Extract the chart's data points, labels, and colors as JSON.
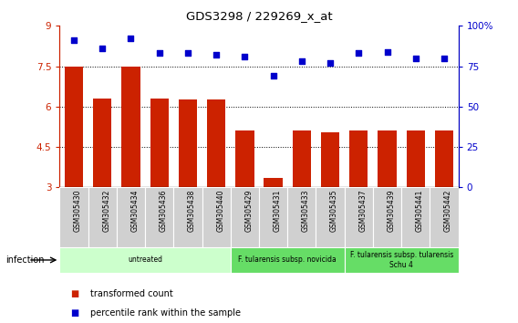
{
  "title": "GDS3298 / 229269_x_at",
  "samples": [
    "GSM305430",
    "GSM305432",
    "GSM305434",
    "GSM305436",
    "GSM305438",
    "GSM305440",
    "GSM305429",
    "GSM305431",
    "GSM305433",
    "GSM305435",
    "GSM305437",
    "GSM305439",
    "GSM305441",
    "GSM305442"
  ],
  "bar_values": [
    7.5,
    6.3,
    7.47,
    6.3,
    6.25,
    6.25,
    5.1,
    3.35,
    5.1,
    5.05,
    5.1,
    5.1,
    5.1,
    5.1
  ],
  "dot_values": [
    91,
    86,
    92,
    83,
    83,
    82,
    81,
    69,
    78,
    77,
    83,
    84,
    80,
    80
  ],
  "bar_color": "#cc2200",
  "dot_color": "#0000cc",
  "ylim_left": [
    3,
    9
  ],
  "ylim_right": [
    0,
    100
  ],
  "yticks_left": [
    3,
    4.5,
    6,
    7.5,
    9
  ],
  "ytick_labels_left": [
    "3",
    "4.5",
    "6",
    "7.5",
    "9"
  ],
  "yticks_right": [
    0,
    25,
    50,
    75,
    100
  ],
  "ytick_labels_right": [
    "0",
    "25",
    "50",
    "75",
    "100%"
  ],
  "groups": [
    {
      "label": "untreated",
      "start": 0,
      "end": 6,
      "color": "#ccffcc"
    },
    {
      "label": "F. tularensis subsp. novicida",
      "start": 6,
      "end": 10,
      "color": "#66dd66"
    },
    {
      "label": "F. tularensis subsp. tularensis\nSchu 4",
      "start": 10,
      "end": 14,
      "color": "#66dd66"
    }
  ],
  "infection_label": "infection",
  "legend_bar": "transformed count",
  "legend_dot": "percentile rank within the sample",
  "bg_color": "#ffffff",
  "dotted_lines": [
    4.5,
    6.0,
    7.5
  ],
  "bar_bottom": 3,
  "cell_color": "#d0d0d0"
}
